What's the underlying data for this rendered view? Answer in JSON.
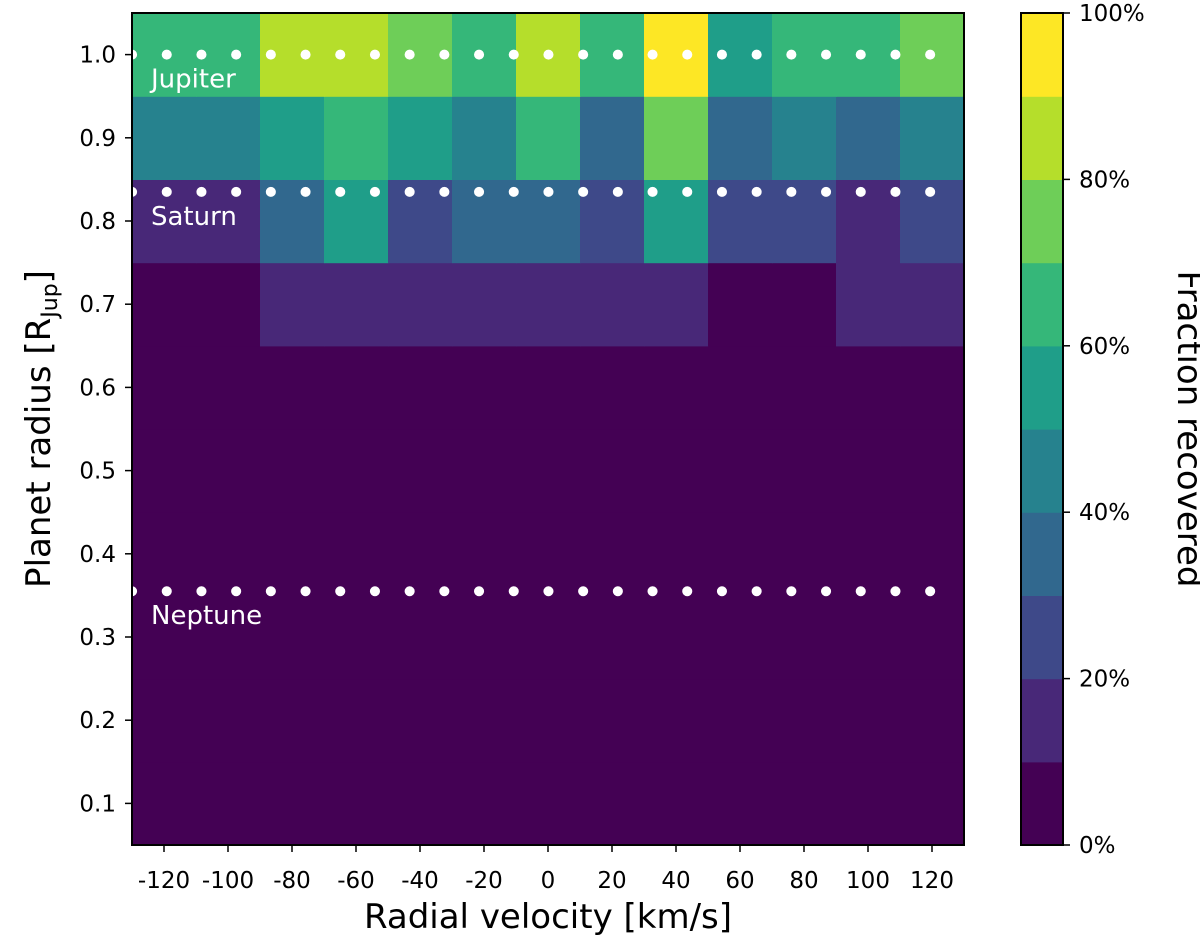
{
  "chart_data": {
    "type": "heatmap",
    "x": [
      -120,
      -100,
      -80,
      -60,
      -40,
      -20,
      0,
      20,
      40,
      60,
      80,
      100,
      120
    ],
    "x_tick_labels": [
      "-120",
      "-100",
      "-80",
      "-60",
      "-40",
      "-20",
      "0",
      "20",
      "40",
      "60",
      "80",
      "100",
      "120"
    ],
    "y": [
      0.1,
      0.2,
      0.3,
      0.4,
      0.5,
      0.6,
      0.7,
      0.8,
      0.9,
      1.0
    ],
    "y_tick_labels": [
      "0.1",
      "0.2",
      "0.3",
      "0.4",
      "0.5",
      "0.6",
      "0.7",
      "0.8",
      "0.9",
      "1.0"
    ],
    "xlim": [
      -130,
      130
    ],
    "ylim": [
      0.05,
      1.05
    ],
    "values_percent": [
      [
        0,
        0,
        0,
        0,
        0,
        0,
        0,
        0,
        0,
        0,
        0,
        0,
        0
      ],
      [
        0,
        0,
        0,
        0,
        0,
        0,
        0,
        0,
        0,
        0,
        0,
        0,
        0
      ],
      [
        0,
        0,
        0,
        0,
        0,
        0,
        0,
        0,
        0,
        0,
        0,
        0,
        0
      ],
      [
        0,
        0,
        0,
        0,
        0,
        0,
        0,
        0,
        0,
        0,
        0,
        0,
        0
      ],
      [
        0,
        0,
        0,
        0,
        0,
        0,
        0,
        0,
        0,
        0,
        0,
        0,
        0
      ],
      [
        0,
        0,
        0,
        0,
        0,
        0,
        0,
        0,
        0,
        0,
        0,
        0,
        0
      ],
      [
        0,
        0,
        10,
        10,
        10,
        10,
        10,
        10,
        10,
        0,
        0,
        10,
        10
      ],
      [
        10,
        10,
        30,
        50,
        20,
        30,
        30,
        20,
        50,
        20,
        20,
        10,
        20
      ],
      [
        40,
        40,
        50,
        60,
        50,
        40,
        60,
        30,
        70,
        30,
        40,
        30,
        40
      ],
      [
        60,
        60,
        80,
        80,
        70,
        60,
        80,
        60,
        100,
        50,
        60,
        60,
        70
      ]
    ],
    "xlabel": "Radial velocity [km/s]",
    "ylabel": "Planet radius [R",
    "ylabel_subscript": "Jup",
    "ylabel_close": "]",
    "colorbar": {
      "label": "Fraction recovered",
      "range": [
        0,
        100
      ],
      "levels": 10,
      "ticks": [
        0,
        20,
        40,
        60,
        80,
        100
      ],
      "tick_labels": [
        "0%",
        "20%",
        "40%",
        "60%",
        "80%",
        "100%"
      ],
      "colors": [
        "#440154",
        "#482878",
        "#3e4989",
        "#31688e",
        "#26828e",
        "#1f9e89",
        "#35b779",
        "#6ece58",
        "#b5de2b",
        "#fde725"
      ]
    },
    "reference_lines": [
      {
        "label": "Jupiter",
        "y": 1.0
      },
      {
        "label": "Saturn",
        "y": 0.835
      },
      {
        "label": "Neptune",
        "y": 0.355
      }
    ],
    "reference_line_color": "#ffffff",
    "reference_line_style": "dotted",
    "grid": false
  }
}
